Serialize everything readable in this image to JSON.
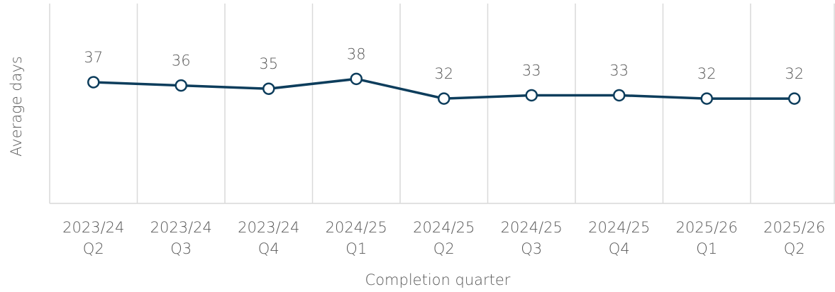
{
  "chart_data": {
    "type": "line",
    "y_label": "Average days",
    "x_label": "Completion quarter",
    "categories": [
      "2023/24 Q2",
      "2023/24 Q3",
      "2023/24 Q4",
      "2024/25 Q1",
      "2024/25 Q2",
      "2024/25 Q3",
      "2024/25 Q4",
      "2025/26 Q1",
      "2025/26 Q2"
    ],
    "series": [
      {
        "name": "Average days",
        "color": "#0d3d5c",
        "values": [
          37,
          36,
          35,
          38,
          32,
          33,
          33,
          32,
          32
        ]
      }
    ],
    "ylim": [
      0,
      61
    ],
    "grid": true
  }
}
